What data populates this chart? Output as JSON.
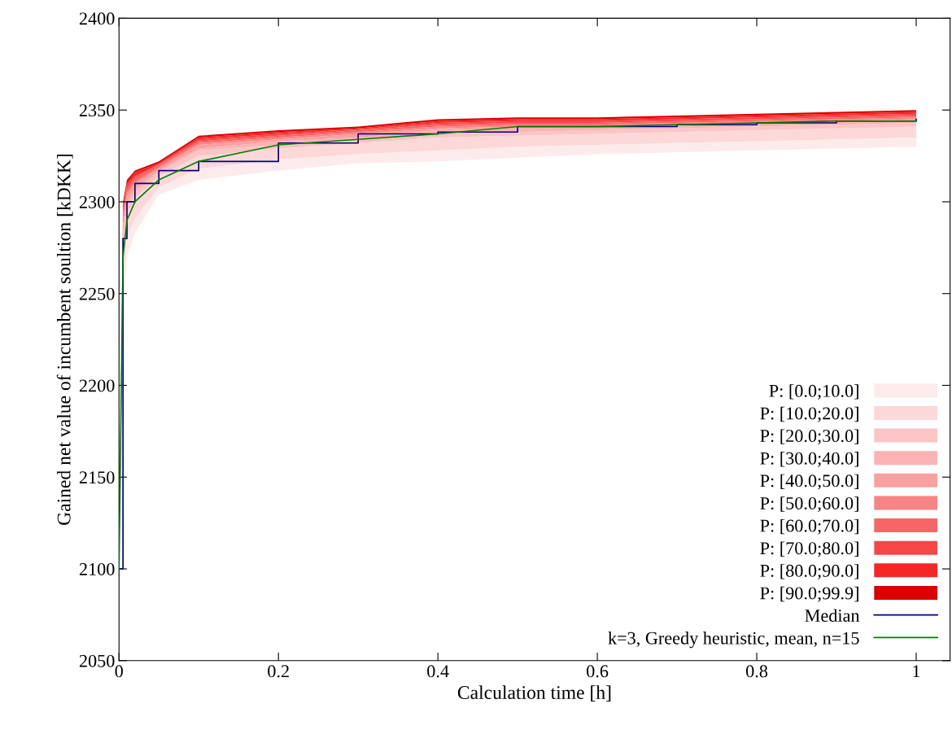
{
  "chart_data": {
    "type": "line",
    "xlabel": "Calculation time [h]",
    "ylabel": "Gained net value of incumbent soultion [kDKK]",
    "x": [
      0,
      0.005,
      0.01,
      0.02,
      0.05,
      0.1,
      0.2,
      0.3,
      0.4,
      0.5,
      0.6,
      0.7,
      0.8,
      0.9,
      1.0
    ],
    "xlim": [
      0,
      1.0425
    ],
    "xticks": [
      0,
      0.2,
      0.4,
      0.6,
      0.8,
      1
    ],
    "ylim": [
      2050,
      2400
    ],
    "yticks": [
      2050,
      2100,
      2150,
      2200,
      2250,
      2300,
      2350,
      2400
    ],
    "grid": false,
    "legend": "bottom right",
    "series": [
      {
        "name": "P: [0.0;10.0]",
        "type": "area",
        "color": "#fdeaea",
        "values": [
          null,
          null,
          null,
          null,
          null,
          null,
          null,
          null,
          null,
          null,
          null,
          null,
          null,
          null,
          null
        ],
        "lower": [
          2100,
          2240,
          2270,
          2283,
          2304,
          2312,
          2317,
          2321,
          2322,
          2324,
          2326,
          2327,
          2328,
          2329,
          2330
        ],
        "upper": [
          2100,
          2255,
          2281,
          2291,
          2308,
          2318,
          2323,
          2326,
          2328,
          2330,
          2331,
          2332,
          2333,
          2334,
          2335
        ]
      },
      {
        "name": "P: [10.0;20.0]",
        "type": "area",
        "color": "#fdd8d8",
        "values": [
          null,
          null,
          null,
          null,
          null,
          null,
          null,
          null,
          null,
          null,
          null,
          null,
          null,
          null,
          null
        ],
        "lower": [
          2100,
          2255,
          2281,
          2291,
          2308,
          2318,
          2323,
          2326,
          2328,
          2330,
          2331,
          2332,
          2333,
          2334,
          2335
        ],
        "upper": [
          2100,
          2273,
          2293,
          2302,
          2314,
          2325,
          2329,
          2332,
          2335,
          2336,
          2337,
          2338,
          2339,
          2340,
          2341
        ]
      },
      {
        "name": "P: [20.0;30.0]",
        "type": "area",
        "color": "#fcc5c5",
        "values": [
          null,
          null,
          null,
          null,
          null,
          null,
          null,
          null,
          null,
          null,
          null,
          null,
          null,
          null,
          null
        ],
        "lower": [
          2100,
          2273,
          2293,
          2302,
          2314,
          2325,
          2329,
          2332,
          2335,
          2336,
          2337,
          2338,
          2339,
          2340,
          2341
        ],
        "upper": [
          2100,
          2279,
          2297,
          2305,
          2316,
          2328,
          2331,
          2334,
          2337,
          2338,
          2339,
          2340,
          2341,
          2342,
          2343
        ]
      },
      {
        "name": "P: [30.0;40.0]",
        "type": "area",
        "color": "#fbb3b3",
        "values": [
          null,
          null,
          null,
          null,
          null,
          null,
          null,
          null,
          null,
          null,
          null,
          null,
          null,
          null,
          null
        ],
        "lower": [
          2100,
          2279,
          2297,
          2305,
          2316,
          2328,
          2331,
          2334,
          2337,
          2338,
          2339,
          2340,
          2341,
          2342,
          2343
        ],
        "upper": [
          2100,
          2283,
          2300,
          2307,
          2317,
          2329,
          2333,
          2335,
          2339,
          2340,
          2340,
          2341,
          2342,
          2343,
          2344
        ]
      },
      {
        "name": "P: [40.0;50.0]",
        "type": "area",
        "color": "#f9a0a0",
        "values": [
          null,
          null,
          null,
          null,
          null,
          null,
          null,
          null,
          null,
          null,
          null,
          null,
          null,
          null,
          null
        ],
        "lower": [
          2100,
          2283,
          2300,
          2307,
          2317,
          2329,
          2333,
          2335,
          2339,
          2340,
          2340,
          2341,
          2342,
          2343,
          2344
        ],
        "upper": [
          2100,
          2287,
          2303,
          2310,
          2318,
          2331,
          2334,
          2337,
          2340,
          2341,
          2341,
          2342,
          2343,
          2344,
          2345
        ]
      },
      {
        "name": "P: [50.0;60.0]",
        "type": "area",
        "color": "#f88484",
        "values": [
          null,
          null,
          null,
          null,
          null,
          null,
          null,
          null,
          null,
          null,
          null,
          null,
          null,
          null,
          null
        ],
        "lower": [
          2100,
          2287,
          2303,
          2310,
          2318,
          2331,
          2334,
          2337,
          2340,
          2341,
          2341,
          2342,
          2343,
          2344,
          2345
        ],
        "upper": [
          2100,
          2290,
          2305,
          2311,
          2319,
          2332,
          2335,
          2338,
          2341,
          2342,
          2342,
          2343,
          2344,
          2345,
          2346
        ]
      },
      {
        "name": "P: [60.0;70.0]",
        "type": "area",
        "color": "#f76666",
        "values": [
          null,
          null,
          null,
          null,
          null,
          null,
          null,
          null,
          null,
          null,
          null,
          null,
          null,
          null,
          null
        ],
        "lower": [
          2100,
          2290,
          2305,
          2311,
          2319,
          2332,
          2335,
          2338,
          2341,
          2342,
          2342,
          2343,
          2344,
          2345,
          2346
        ],
        "upper": [
          2100,
          2293,
          2307,
          2313,
          2320,
          2333,
          2336,
          2339,
          2342,
          2343,
          2343,
          2344,
          2345,
          2346,
          2347
        ]
      },
      {
        "name": "P: [70.0;80.0]",
        "type": "area",
        "color": "#f64646",
        "values": [
          null,
          null,
          null,
          null,
          null,
          null,
          null,
          null,
          null,
          null,
          null,
          null,
          null,
          null,
          null
        ],
        "lower": [
          2100,
          2293,
          2307,
          2313,
          2320,
          2333,
          2336,
          2339,
          2342,
          2343,
          2343,
          2344,
          2345,
          2346,
          2347
        ],
        "upper": [
          2100,
          2295,
          2309,
          2314,
          2320.5,
          2334,
          2337,
          2339.5,
          2343,
          2344,
          2344,
          2345,
          2346,
          2347,
          2348
        ]
      },
      {
        "name": "P: [80.0;90.0]",
        "type": "area",
        "color": "#f52626",
        "values": [
          null,
          null,
          null,
          null,
          null,
          null,
          null,
          null,
          null,
          null,
          null,
          null,
          null,
          null,
          null
        ],
        "lower": [
          2100,
          2295,
          2309,
          2314,
          2320.5,
          2334,
          2337,
          2339.5,
          2343,
          2344,
          2344,
          2345,
          2346,
          2347,
          2348
        ],
        "upper": [
          2100,
          2298,
          2310,
          2316,
          2321,
          2335,
          2338,
          2340,
          2344,
          2345,
          2345,
          2346,
          2347,
          2348,
          2349
        ]
      },
      {
        "name": "P: [90.0;99.9]",
        "type": "area",
        "color": "#dd0000",
        "values": [
          null,
          null,
          null,
          null,
          null,
          null,
          null,
          null,
          null,
          null,
          null,
          null,
          null,
          null,
          null
        ],
        "lower": [
          2100,
          2298,
          2310,
          2316,
          2321,
          2335,
          2338,
          2340,
          2344,
          2345,
          2345,
          2346,
          2347,
          2348,
          2349
        ],
        "upper": [
          2100,
          2300,
          2312,
          2317,
          2322,
          2336,
          2339,
          2341,
          2345,
          2346,
          2346,
          2347,
          2348,
          2349,
          2350
        ]
      },
      {
        "name": "Median",
        "type": "step",
        "color": "#000080",
        "values": [
          2100,
          2280,
          2300,
          2310,
          2317,
          2322,
          2332,
          2337,
          2338,
          2341,
          2341,
          2342,
          2343,
          2344,
          2345
        ]
      },
      {
        "name": "k=3, Greedy heuristic, mean, n=15",
        "color": "#008000",
        "values": [
          2100,
          2270,
          2290,
          2300,
          2312,
          2322,
          2331,
          2334,
          2337,
          2341,
          2341,
          2342,
          2343,
          2344,
          2344
        ]
      }
    ]
  }
}
